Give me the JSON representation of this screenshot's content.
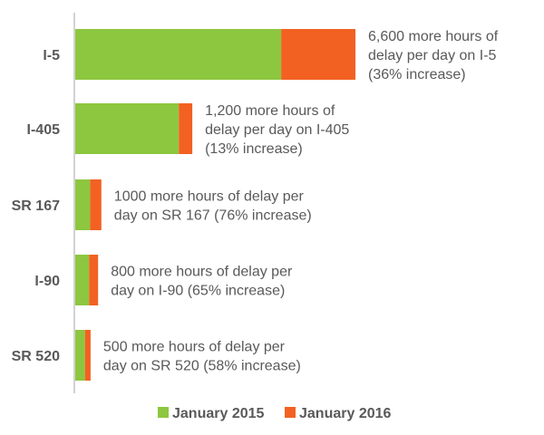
{
  "chart_data": {
    "type": "bar",
    "orientation": "horizontal",
    "stacked": true,
    "title": "",
    "xlabel": "",
    "ylabel": "",
    "categories": [
      "I-5",
      "I-405",
      "SR 167",
      "I-90",
      "SR 520"
    ],
    "series": [
      {
        "name": "January 2015",
        "color": "#8dc63f",
        "values": [
          18300,
          9200,
          1320,
          1230,
          860
        ]
      },
      {
        "name": "January 2016",
        "color": "#f26122",
        "values": [
          6600,
          1200,
          1000,
          800,
          500
        ]
      }
    ],
    "xlim": [
      0,
      26000
    ],
    "x_axis_visible": false,
    "grid": false,
    "legend": "bottom",
    "annotations": [
      [
        "6,600 more hours of",
        "delay per day on I-5",
        "(36% increase)"
      ],
      [
        "1,200 more hours of",
        "delay per day on I-405",
        "(13% increase)"
      ],
      [
        "1000 more hours of delay per",
        "day on SR 167 (76% increase)"
      ],
      [
        "800 more hours of delay per",
        "day on I-90 (65% increase)"
      ],
      [
        "500 more hours of delay per",
        "day on SR 520 (58% increase)"
      ]
    ]
  }
}
